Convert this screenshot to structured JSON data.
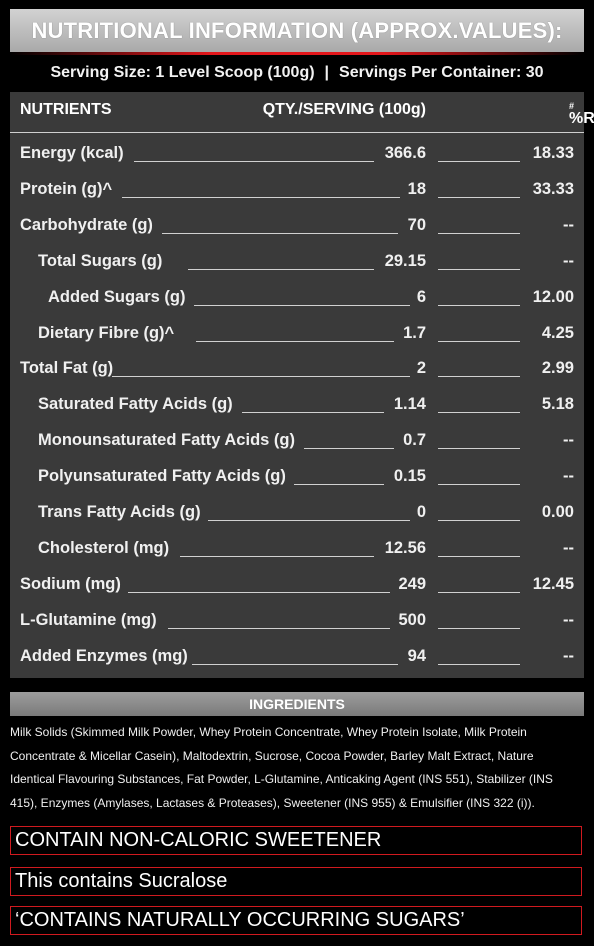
{
  "title": "NUTRITIONAL INFORMATION (APPROX.VALUES):",
  "serving": {
    "size": "Serving Size: 1 Level Scoop (100g)",
    "separator": "|",
    "per_container": "Servings Per Container: 30"
  },
  "table": {
    "headers": {
      "nutrients": "NUTRIENTS",
      "qty": "QTY./SERVING (100g)",
      "rda": "%RDA",
      "rda_mark": "#"
    },
    "rows": [
      {
        "name": "Energy (kcal)",
        "qty": "366.6",
        "rda": "18.33"
      },
      {
        "name": "Protein (g)^",
        "qty": "18",
        "rda": "33.33"
      },
      {
        "name": "Carbohydrate (g)",
        "qty": "70",
        "rda": "--"
      },
      {
        "name": "Total Sugars (g)",
        "qty": "29.15",
        "rda": "--"
      },
      {
        "name": "Added Sugars (g)",
        "qty": "6",
        "rda": "12.00"
      },
      {
        "name": "Dietary Fibre (g)^",
        "qty": "1.7",
        "rda": "4.25"
      },
      {
        "name": "Total Fat (g)",
        "qty": "2",
        "rda": "2.99"
      },
      {
        "name": "Saturated Fatty Acids (g)",
        "qty": "1.14",
        "rda": "5.18"
      },
      {
        "name": "Monounsaturated Fatty Acids (g)",
        "qty": "0.7",
        "rda": "--"
      },
      {
        "name": "Polyunsaturated Fatty Acids (g)",
        "qty": "0.15",
        "rda": "--"
      },
      {
        "name": "Trans Fatty Acids (g)",
        "qty": "0",
        "rda": "0.00"
      },
      {
        "name": "Cholesterol (mg)",
        "qty": "12.56",
        "rda": "--"
      },
      {
        "name": "Sodium (mg)",
        "qty": "249",
        "rda": "12.45"
      },
      {
        "name": "L-Glutamine (mg)",
        "qty": "500",
        "rda": "--"
      },
      {
        "name": "Added Enzymes (mg)",
        "qty": "94",
        "rda": "--"
      }
    ]
  },
  "ingredients": {
    "heading": "INGREDIENTS",
    "lines": [
      "Milk Solids (Skimmed Milk Powder, Whey Protein Concentrate, Whey Protein Isolate, Milk Protein",
      "Concentrate & Micellar Casein), Maltodextrin, Sucrose, Cocoa Powder, Barley Malt Extract, Nature",
      "Identical Flavouring Substances,  Fat Powder, L-Glutamine, Anticaking Agent (INS 551), Stabilizer (INS",
      "415), Enzymes (Amylases, Lactases & Proteases), Sweetener (INS 955) & Emulsifier (INS 322 (i))."
    ]
  },
  "notices": [
    "CONTAIN NON-CALORIC SWEETENER",
    "This contains Sucralose",
    "‘CONTAINS NATURALLY OCCURRING SUGARS’"
  ],
  "colors": {
    "accent_red": "#e3161b",
    "panel_bg": "#3a3a3a",
    "title_bg": "#c0c0c0"
  }
}
